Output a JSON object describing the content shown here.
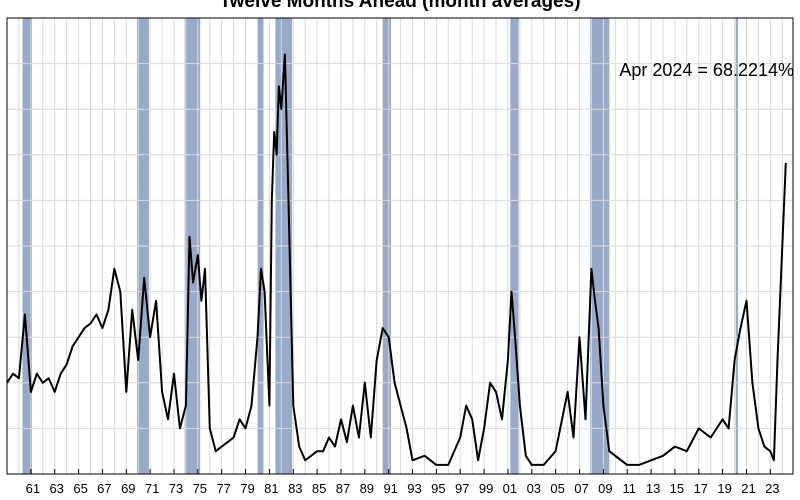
{
  "chart_data": {
    "type": "line",
    "title": "Twelve Months Ahead (month averages)",
    "xlabel": "",
    "ylabel": "",
    "annotation": "Apr 2024 = 68.2214%",
    "series_color": "#000000",
    "recession_color": "#98aac8",
    "grid": true,
    "xlim": [
      1959.0,
      2024.9
    ],
    "ylim": [
      0,
      100
    ],
    "x_tick_labels": [
      "61",
      "63",
      "65",
      "67",
      "69",
      "71",
      "73",
      "75",
      "77",
      "79",
      "81",
      "83",
      "85",
      "87",
      "89",
      "91",
      "93",
      "95",
      "97",
      "99",
      "01",
      "03",
      "05",
      "07",
      "09",
      "11",
      "13",
      "15",
      "17",
      "19",
      "21",
      "23"
    ],
    "x_tick_years": [
      1961,
      1963,
      1965,
      1967,
      1969,
      1971,
      1973,
      1975,
      1977,
      1979,
      1981,
      1983,
      1985,
      1987,
      1989,
      1991,
      1993,
      1995,
      1997,
      1999,
      2001,
      2003,
      2005,
      2007,
      2009,
      2011,
      2013,
      2015,
      2017,
      2019,
      2021,
      2023
    ],
    "recessions": [
      [
        1960.3,
        1961.1
      ],
      [
        1969.9,
        1970.9
      ],
      [
        1973.9,
        1975.2
      ],
      [
        1980.0,
        1980.5
      ],
      [
        1981.5,
        1982.9
      ],
      [
        1990.5,
        1991.2
      ],
      [
        2001.2,
        2001.9
      ],
      [
        2007.9,
        2009.5
      ],
      [
        2020.1,
        2020.3
      ]
    ],
    "x": [
      1959.0,
      1959.5,
      1960.0,
      1960.5,
      1961.0,
      1961.5,
      1962.0,
      1962.5,
      1963.0,
      1963.5,
      1964.0,
      1964.5,
      1965.0,
      1965.5,
      1966.0,
      1966.5,
      1967.0,
      1967.5,
      1968.0,
      1968.5,
      1969.0,
      1969.5,
      1970.0,
      1970.5,
      1971.0,
      1971.5,
      1972.0,
      1972.5,
      1973.0,
      1973.5,
      1974.0,
      1974.3,
      1974.6,
      1975.0,
      1975.3,
      1975.6,
      1976.0,
      1976.5,
      1977.0,
      1977.5,
      1978.0,
      1978.5,
      1979.0,
      1979.5,
      1980.0,
      1980.3,
      1980.6,
      1981.0,
      1981.2,
      1981.4,
      1981.6,
      1981.8,
      1982.0,
      1982.3,
      1982.6,
      1983.0,
      1983.5,
      1984.0,
      1984.5,
      1985.0,
      1985.5,
      1986.0,
      1986.5,
      1987.0,
      1987.5,
      1988.0,
      1988.5,
      1989.0,
      1989.5,
      1990.0,
      1990.5,
      1991.0,
      1991.5,
      1992.0,
      1992.5,
      1993.0,
      1994.0,
      1995.0,
      1996.0,
      1997.0,
      1997.5,
      1998.0,
      1998.5,
      1999.0,
      1999.5,
      2000.0,
      2000.5,
      2001.0,
      2001.3,
      2001.6,
      2002.0,
      2002.5,
      2003.0,
      2004.0,
      2005.0,
      2006.0,
      2006.5,
      2007.0,
      2007.5,
      2008.0,
      2008.3,
      2008.6,
      2009.0,
      2009.5,
      2010.0,
      2011.0,
      2012.0,
      2013.0,
      2014.0,
      2015.0,
      2016.0,
      2017.0,
      2018.0,
      2019.0,
      2019.5,
      2020.0,
      2020.5,
      2021.0,
      2021.5,
      2022.0,
      2022.5,
      2023.0,
      2023.3,
      2023.6,
      2024.0,
      2024.3
    ],
    "y": [
      20,
      22,
      21,
      35,
      18,
      22,
      20,
      21,
      18,
      22,
      24,
      28,
      30,
      32,
      33,
      35,
      32,
      36,
      45,
      40,
      18,
      36,
      25,
      43,
      30,
      38,
      18,
      12,
      22,
      10,
      15,
      52,
      42,
      48,
      38,
      45,
      10,
      5,
      6,
      7,
      8,
      12,
      10,
      15,
      30,
      45,
      40,
      15,
      60,
      75,
      70,
      85,
      80,
      92,
      60,
      15,
      6,
      3,
      4,
      5,
      5,
      8,
      6,
      12,
      7,
      15,
      8,
      20,
      8,
      25,
      32,
      30,
      20,
      15,
      10,
      3,
      4,
      2,
      2,
      8,
      15,
      12,
      3,
      10,
      20,
      18,
      12,
      25,
      40,
      30,
      15,
      4,
      2,
      2,
      5,
      18,
      8,
      30,
      12,
      45,
      38,
      32,
      15,
      5,
      4,
      2,
      2,
      3,
      4,
      6,
      5,
      10,
      8,
      12,
      10,
      25,
      32,
      38,
      20,
      10,
      6,
      5,
      3,
      25,
      50,
      68.2214
    ]
  }
}
